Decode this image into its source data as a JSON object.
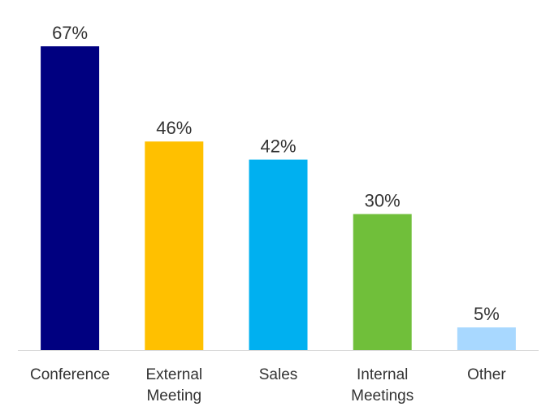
{
  "chart_data": {
    "type": "bar",
    "title": "",
    "xlabel": "",
    "ylabel": "",
    "ylim": [
      0,
      67
    ],
    "grid": false,
    "categories": [
      [
        "Conference"
      ],
      [
        "External",
        "Meeting"
      ],
      [
        "Sales"
      ],
      [
        "Internal",
        "Meetings"
      ],
      [
        "Other"
      ]
    ],
    "values": [
      67,
      46,
      42,
      30,
      5
    ],
    "value_labels": [
      "67%",
      "46%",
      "42%",
      "30%",
      "5%"
    ],
    "colors": [
      "#000080",
      "#FFC000",
      "#00B0F0",
      "#70BF3A",
      "#A8D8FF"
    ],
    "baseline_color": "#d9d9d9"
  }
}
